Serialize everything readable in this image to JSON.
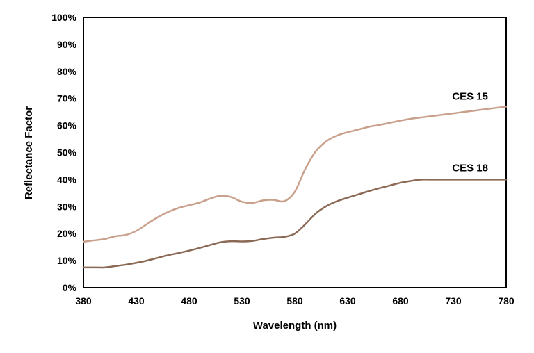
{
  "chart_data": {
    "type": "line",
    "title": "",
    "xlabel": "Wavelength (nm)",
    "ylabel": "Reflectance Factor",
    "xlim": [
      380,
      780
    ],
    "ylim": [
      0,
      100
    ],
    "x_ticks": [
      "380",
      "430",
      "480",
      "530",
      "580",
      "630",
      "680",
      "730",
      "780"
    ],
    "y_ticks": [
      "0%",
      "10%",
      "20%",
      "30%",
      "40%",
      "50%",
      "60%",
      "70%",
      "80%",
      "90%",
      "100%"
    ],
    "grid": false,
    "legend": "none",
    "series": [
      {
        "name": "CES 15",
        "color": "#c9a08c",
        "x": [
          380,
          390,
          400,
          410,
          420,
          430,
          440,
          450,
          460,
          470,
          480,
          490,
          500,
          510,
          520,
          530,
          540,
          550,
          560,
          570,
          580,
          590,
          600,
          610,
          620,
          630,
          640,
          650,
          660,
          670,
          680,
          690,
          700,
          710,
          720,
          730,
          740,
          750,
          760,
          770,
          780
        ],
        "values": [
          17,
          17.5,
          18,
          19,
          19.5,
          21,
          23.5,
          26,
          28,
          29.5,
          30.5,
          31.5,
          33,
          34,
          33.5,
          31.8,
          31.4,
          32.3,
          32.5,
          32,
          35.5,
          44,
          50.5,
          54.2,
          56.3,
          57.5,
          58.5,
          59.5,
          60.2,
          61,
          61.8,
          62.5,
          63,
          63.5,
          64,
          64.5,
          65,
          65.5,
          66,
          66.5,
          67
        ]
      },
      {
        "name": "CES 18",
        "color": "#8b6a55",
        "x": [
          380,
          390,
          400,
          410,
          420,
          430,
          440,
          450,
          460,
          470,
          480,
          490,
          500,
          510,
          520,
          530,
          540,
          550,
          560,
          570,
          580,
          590,
          600,
          610,
          620,
          630,
          640,
          650,
          660,
          670,
          680,
          690,
          700,
          710,
          720,
          730,
          740,
          750,
          760,
          770,
          780
        ],
        "values": [
          7.5,
          7.5,
          7.5,
          8,
          8.5,
          9.2,
          10,
          11,
          12,
          12.8,
          13.7,
          14.7,
          15.8,
          16.8,
          17.2,
          17.1,
          17.3,
          18,
          18.5,
          18.8,
          20,
          23.5,
          27.5,
          30.2,
          32,
          33.3,
          34.5,
          35.7,
          36.8,
          37.8,
          38.8,
          39.5,
          40,
          40,
          40,
          40,
          40,
          40,
          40,
          40,
          40
        ]
      }
    ]
  }
}
